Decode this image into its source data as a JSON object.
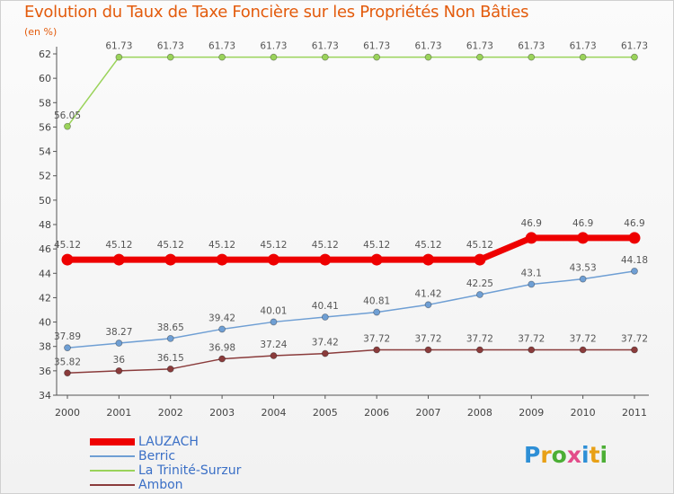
{
  "title": "Evolution du Taux de Taxe Foncière sur les Propriétés Non Bâties",
  "unit": "(en %)",
  "logo": {
    "text": "Proxiti",
    "colors": [
      "#2e8fd6",
      "#e8a016",
      "#4cae35",
      "#e34c8a",
      "#2e8fd6",
      "#e8a016",
      "#4cae35"
    ]
  },
  "chart_data": {
    "type": "line",
    "title": "Evolution du Taux de Taxe Foncière sur les Propriétés Non Bâties",
    "ylabel": "(en %)",
    "xlabel": "",
    "x": [
      "2000",
      "2001",
      "2002",
      "2003",
      "2004",
      "2005",
      "2006",
      "2007",
      "2008",
      "2009",
      "2010",
      "2011"
    ],
    "ylim": [
      34,
      62
    ],
    "yticks": [
      34,
      36,
      38,
      40,
      42,
      44,
      46,
      48,
      50,
      52,
      54,
      56,
      58,
      60,
      62
    ],
    "grid": false,
    "legend_position": "bottom-left",
    "series": [
      {
        "name": "LAUZACH",
        "color": "#ee0000",
        "values": [
          45.12,
          45.12,
          45.12,
          45.12,
          45.12,
          45.12,
          45.12,
          45.12,
          45.12,
          46.9,
          46.9,
          46.9
        ],
        "labels": [
          "45.12",
          "45.12",
          "45.12",
          "45.12",
          "45.12",
          "45.12",
          "45.12",
          "45.12",
          "45.12",
          "46.9",
          "46.9",
          "46.9"
        ]
      },
      {
        "name": "Berric",
        "color": "#6f9fd4",
        "values": [
          37.89,
          38.27,
          38.65,
          39.42,
          40.01,
          40.41,
          40.81,
          41.42,
          42.25,
          43.1,
          43.53,
          44.18
        ],
        "labels": [
          "37.89",
          "38.27",
          "38.65",
          "39.42",
          "40.01",
          "40.41",
          "40.81",
          "41.42",
          "42.25",
          "43.1",
          "43.53",
          "44.18"
        ]
      },
      {
        "name": "La Trinité-Surzur",
        "color": "#9ad35a",
        "values": [
          56.05,
          61.73,
          61.73,
          61.73,
          61.73,
          61.73,
          61.73,
          61.73,
          61.73,
          61.73,
          61.73,
          61.73
        ],
        "labels": [
          "56.05",
          "61.73",
          "61.73",
          "61.73",
          "61.73",
          "61.73",
          "61.73",
          "61.73",
          "61.73",
          "61.73",
          "61.73",
          "61.73"
        ]
      },
      {
        "name": "Ambon",
        "color": "#8a3b3b",
        "values": [
          35.82,
          36,
          36.15,
          36.98,
          37.24,
          37.42,
          37.72,
          37.72,
          37.72,
          37.72,
          37.72,
          37.72
        ],
        "labels": [
          "35.82",
          "36",
          "36.15",
          "36.98",
          "37.24",
          "37.42",
          "37.72",
          "37.72",
          "37.72",
          "37.72",
          "37.72",
          "37.72"
        ]
      }
    ]
  }
}
